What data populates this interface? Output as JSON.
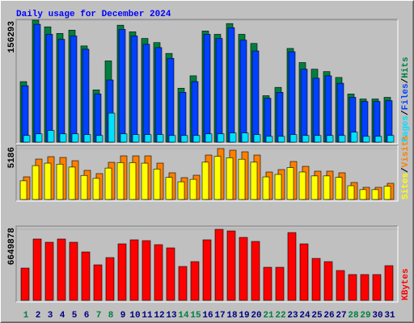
{
  "chart_data": [
    {
      "type": "bar",
      "title": "Daily usage for December 2024",
      "ylim": [
        0,
        156293
      ],
      "yticks": [
        156293
      ],
      "separator": "/",
      "series": [
        {
          "name": "Hits",
          "color": "#008040",
          "values": [
            77600,
            156293,
            147800,
            139300,
            143500,
            123300,
            67000,
            104200,
            149900,
            141400,
            132900,
            127600,
            113700,
            69100,
            85000,
            142400,
            138200,
            152000,
            138200,
            126500,
            59500,
            70200,
            120100,
            102000,
            93500,
            90400,
            82900,
            61700,
            55300,
            55300,
            57400
          ]
        },
        {
          "name": "Files",
          "color": "#0040ff",
          "values": [
            72300,
            151000,
            138200,
            131800,
            136100,
            119100,
            61700,
            79700,
            144600,
            136100,
            125400,
            121200,
            107400,
            63800,
            77600,
            138200,
            132900,
            146700,
            130700,
            116900,
            56300,
            63800,
            115900,
            93500,
            81900,
            85000,
            75500,
            57400,
            52100,
            52100,
            53200
          ]
        },
        {
          "name": "Pages",
          "color": "#00e0ff",
          "values": [
            8500,
            10600,
            14900,
            10600,
            10600,
            9600,
            8500,
            37200,
            10600,
            9600,
            9600,
            9600,
            8500,
            8500,
            8500,
            10600,
            10600,
            11700,
            11700,
            9600,
            7400,
            7400,
            9600,
            8500,
            8500,
            8500,
            8500,
            12800,
            7400,
            7400,
            8500
          ]
        }
      ]
    },
    {
      "type": "bar",
      "ylim": [
        0,
        5186
      ],
      "yticks": [
        5186
      ],
      "separator": "/",
      "series": [
        {
          "name": "Visits",
          "color": "#ff8000",
          "values": [
            2304,
            4115,
            4362,
            4280,
            3950,
            2963,
            2634,
            3786,
            4444,
            4444,
            4444,
            3704,
            2716,
            2222,
            2469,
            4527,
            5186,
            5020,
            4856,
            4527,
            2798,
            3045,
            3868,
            3374,
            2881,
            2881,
            2716,
            1728,
            1235,
            1235,
            1646
          ]
        },
        {
          "name": "Sites",
          "color": "#ffff00",
          "values": [
            1900,
            3450,
            3700,
            3600,
            3300,
            2450,
            2150,
            3200,
            3750,
            3750,
            3700,
            3100,
            2250,
            1800,
            2050,
            3800,
            4400,
            4250,
            4100,
            3800,
            2300,
            2550,
            3250,
            2800,
            2400,
            2400,
            2250,
            1400,
            1000,
            1000,
            1350
          ]
        }
      ]
    },
    {
      "type": "bar",
      "ylim": [
        0,
        6649878
      ],
      "yticks": [
        6649878
      ],
      "categories": [
        "1",
        "2",
        "3",
        "4",
        "5",
        "6",
        "7",
        "8",
        "9",
        "10",
        "11",
        "12",
        "13",
        "14",
        "15",
        "16",
        "17",
        "18",
        "19",
        "20",
        "21",
        "22",
        "23",
        "24",
        "25",
        "26",
        "27",
        "28",
        "29",
        "30",
        "31"
      ],
      "category_colors": [
        "#008040",
        "#000080",
        "#000080",
        "#000080",
        "#000080",
        "#000080",
        "#008040",
        "#008040",
        "#000080",
        "#000080",
        "#000080",
        "#000080",
        "#000080",
        "#008040",
        "#008040",
        "#000080",
        "#000080",
        "#000080",
        "#000080",
        "#000080",
        "#008040",
        "#008040",
        "#000080",
        "#000080",
        "#000080",
        "#000080",
        "#000080",
        "#008040",
        "#008040",
        "#000080",
        "#000080"
      ],
      "series": [
        {
          "name": "KBytes",
          "color": "#ff0000",
          "values": [
            3022700,
            5743100,
            5440800,
            5743100,
            5440800,
            4534000,
            3325000,
            4005000,
            5289700,
            5667500,
            5592000,
            5214100,
            4911900,
            3173800,
            3627200,
            5667500,
            6649878,
            6498800,
            5894200,
            5516400,
            3098200,
            3098200,
            6347600,
            5289700,
            3929500,
            3627200,
            2796000,
            2418100,
            2418100,
            2418100,
            3249400
          ]
        }
      ]
    }
  ]
}
